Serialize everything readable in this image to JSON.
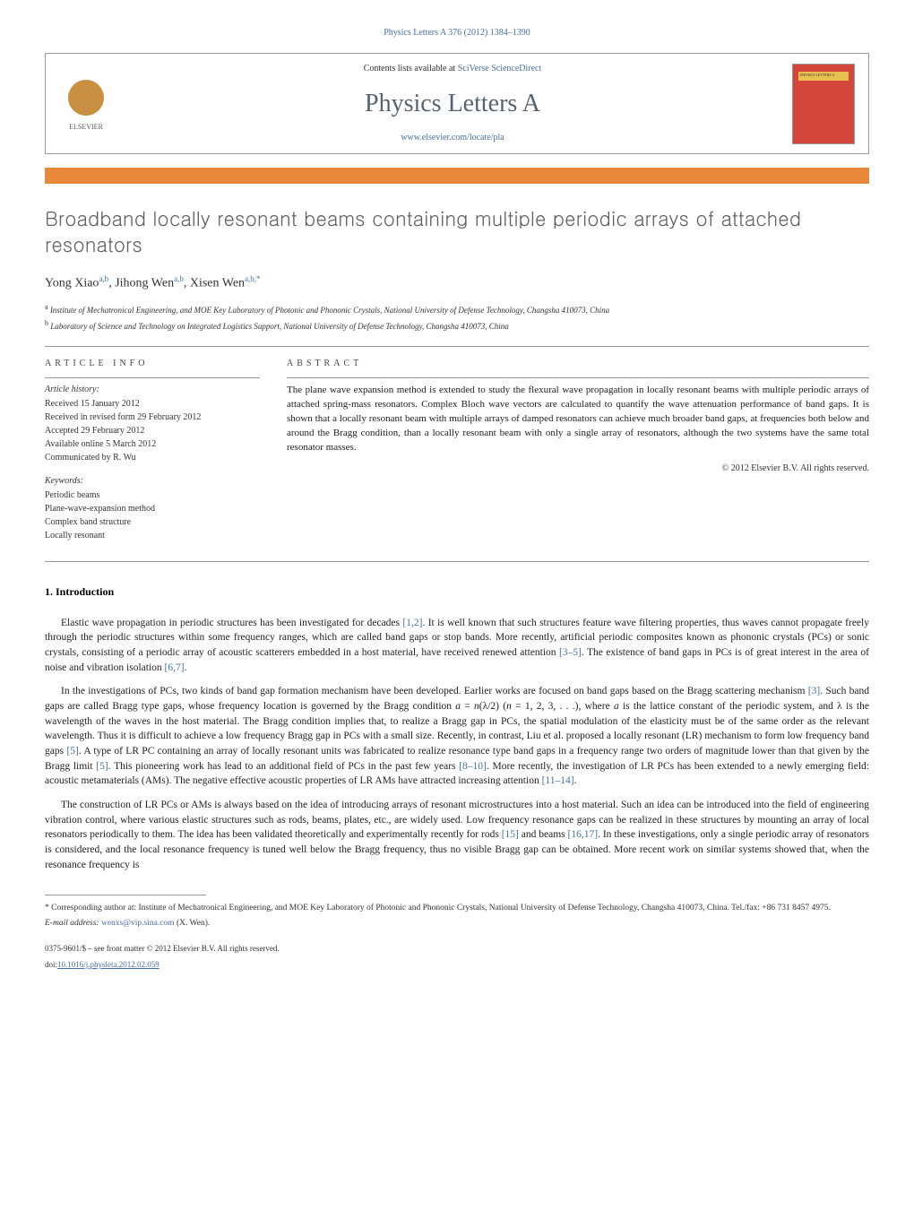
{
  "journal_ref": "Physics Letters A 376 (2012) 1384–1390",
  "header": {
    "elsevier": "ELSEVIER",
    "contents_text": "Contents lists available at ",
    "contents_link": "SciVerse ScienceDirect",
    "journal_name": "Physics Letters A",
    "journal_url": "www.elsevier.com/locate/pla",
    "cover_label": "PHYSICS LETTERS A"
  },
  "title": "Broadband locally resonant beams containing multiple periodic arrays of attached resonators",
  "authors_html": "Yong Xiao",
  "author_list": [
    {
      "name": "Yong Xiao",
      "sup": "a,b"
    },
    {
      "name": "Jihong Wen",
      "sup": "a,b"
    },
    {
      "name": "Xisen Wen",
      "sup": "a,b,*"
    }
  ],
  "affiliations": [
    {
      "sup": "a",
      "text": "Institute of Mechatronical Engineering, and MOE Key Laboratory of Photonic and Phononic Crystals, National University of Defense Technology, Changsha 410073, China"
    },
    {
      "sup": "b",
      "text": "Laboratory of Science and Technology on Integrated Logistics Support, National University of Defense Technology, Changsha 410073, China"
    }
  ],
  "article_info": {
    "label": "ARTICLE INFO",
    "history_label": "Article history:",
    "history": [
      "Received 15 January 2012",
      "Received in revised form 29 February 2012",
      "Accepted 29 February 2012",
      "Available online 5 March 2012",
      "Communicated by R. Wu"
    ],
    "keywords_label": "Keywords:",
    "keywords": [
      "Periodic beams",
      "Plane-wave-expansion method",
      "Complex band structure",
      "Locally resonant"
    ]
  },
  "abstract": {
    "label": "ABSTRACT",
    "text": "The plane wave expansion method is extended to study the flexural wave propagation in locally resonant beams with multiple periodic arrays of attached spring-mass resonators. Complex Bloch wave vectors are calculated to quantify the wave attenuation performance of band gaps. It is shown that a locally resonant beam with multiple arrays of damped resonators can achieve much broader band gaps, at frequencies both below and around the Bragg condition, than a locally resonant beam with only a single array of resonators, although the two systems have the same total resonator masses.",
    "copyright": "© 2012 Elsevier B.V. All rights reserved."
  },
  "sections": {
    "intro_heading": "1. Introduction",
    "paragraphs": [
      "Elastic wave propagation in periodic structures has been investigated for decades [1,2]. It is well known that such structures feature wave filtering properties, thus waves cannot propagate freely through the periodic structures within some frequency ranges, which are called band gaps or stop bands. More recently, artificial periodic composites known as phononic crystals (PCs) or sonic crystals, consisting of a periodic array of acoustic scatterers embedded in a host material, have received renewed attention [3–5]. The existence of band gaps in PCs is of great interest in the area of noise and vibration isolation [6,7].",
      "In the investigations of PCs, two kinds of band gap formation mechanism have been developed. Earlier works are focused on band gaps based on the Bragg scattering mechanism [3]. Such band gaps are called Bragg type gaps, whose frequency location is governed by the Bragg condition a = n(λ/2) (n = 1, 2, 3, . . .), where a is the lattice constant of the periodic system, and λ is the wavelength of the waves in the host material. The Bragg condition implies that, to realize a Bragg gap in PCs, the spatial modulation of the elasticity must be of the same order as the relevant wavelength. Thus it is difficult to achieve a low frequency Bragg gap in PCs with a small size. Recently, in contrast, Liu et al. proposed a locally resonant (LR) mechanism to form low frequency band gaps [5]. A type of LR PC containing an array of locally resonant units was fabricated to realize resonance type band gaps in a frequency range two orders of magnitude lower than that given by the Bragg limit [5]. This pioneering work has lead to an additional field of PCs in the past few years [8–10]. More recently, the investigation of LR PCs has been extended to a newly emerging field: acoustic metamaterials (AMs). The negative effective acoustic properties of LR AMs have attracted increasing attention [11–14].",
      "The construction of LR PCs or AMs is always based on the idea of introducing arrays of resonant microstructures into a host material. Such an idea can be introduced into the field of engineering vibration control, where various elastic structures such as rods, beams, plates, etc., are widely used. Low frequency resonance gaps can be realized in these structures by mounting an array of local resonators periodically to them. The idea has been validated theoretically and experimentally recently for rods [15] and beams [16,17]. In these investigations, only a single periodic array of resonators is considered, and the local resonance frequency is tuned well below the Bragg frequency, thus no visible Bragg gap can be obtained. More recent work on similar systems showed that, when the resonance frequency is"
    ],
    "refs_p1": [
      "[1,2]",
      "[3–5]",
      "[6,7]"
    ],
    "refs_p2": [
      "[3]",
      "[5]",
      "[5]",
      "[8–10]",
      "[11–14]"
    ],
    "refs_p3": [
      "[15]",
      "[16,17]"
    ]
  },
  "footer": {
    "corresponding": "* Corresponding author at: Institute of Mechatronical Engineering, and MOE Key Laboratory of Photonic and Phononic Crystals, National University of Defense Technology, Changsha 410073, China. Tel./fax: +86 731 8457 4975.",
    "email_label": "E-mail address: ",
    "email": "wenxs@vip.sina.com",
    "email_name": " (X. Wen).",
    "front_matter": "0375-9601/$ – see front matter © 2012 Elsevier B.V. All rights reserved.",
    "doi_label": "doi:",
    "doi": "10.1016/j.physleta.2012.02.059"
  },
  "colors": {
    "link": "#4a6fa5",
    "orange_bar": "#e8883a",
    "title_gray": "#606060",
    "cover_red": "#d4453a"
  }
}
